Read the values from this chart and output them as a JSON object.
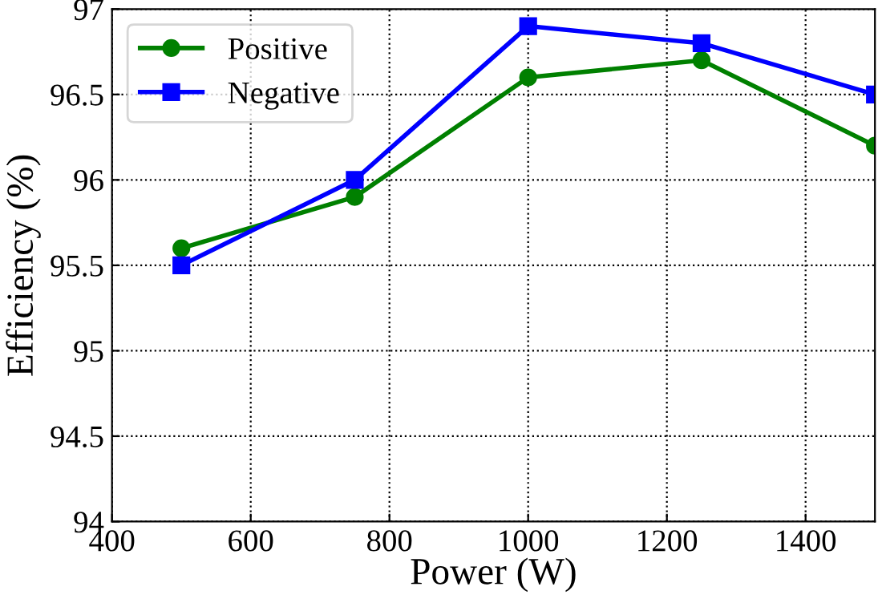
{
  "chart_data": {
    "type": "line",
    "xlabel": "Power (W)",
    "ylabel": "Efficiency (%)",
    "x": [
      500,
      750,
      1000,
      1250,
      1500
    ],
    "series": [
      {
        "name": "Positive",
        "color": "#008000",
        "marker": "circle",
        "values": [
          95.6,
          95.9,
          96.6,
          96.7,
          96.2
        ]
      },
      {
        "name": "Negative",
        "color": "#0000ff",
        "marker": "square",
        "values": [
          95.5,
          96.0,
          96.9,
          96.8,
          96.5
        ]
      }
    ],
    "xlim": [
      400,
      1500
    ],
    "xticks": [
      400,
      600,
      800,
      1000,
      1200,
      1400
    ],
    "ylim": [
      94,
      97
    ],
    "yticks": [
      94,
      94.5,
      95,
      95.5,
      96,
      96.5,
      97
    ],
    "grid": true,
    "legend": "top left",
    "line_style": "solid"
  }
}
